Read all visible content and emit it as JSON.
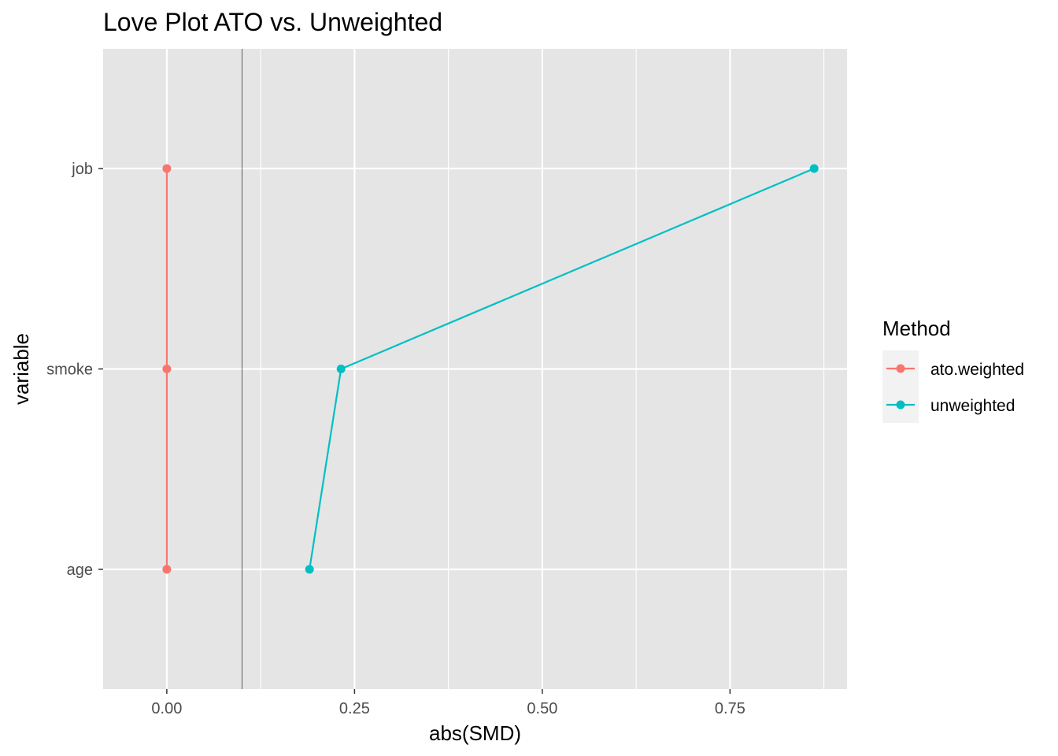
{
  "chart_data": {
    "type": "line",
    "title": "Love Plot ATO vs. Unweighted",
    "xlabel": "abs(SMD)",
    "ylabel": "variable",
    "categories": [
      "age",
      "smoke",
      "job"
    ],
    "xlim": [
      -0.0848,
      0.9058
    ],
    "x_ticks": [
      0,
      0.25,
      0.5,
      0.75
    ],
    "x_tick_labels": [
      "0.00",
      "0.25",
      "0.50",
      "0.75"
    ],
    "reference_line_x": 0.1,
    "grid": true,
    "legend": {
      "title": "Method",
      "position": "right"
    },
    "series": [
      {
        "name": "ato.weighted",
        "color": "#F8766D",
        "values": [
          0.0,
          0.0,
          0.0
        ]
      },
      {
        "name": "unweighted",
        "color": "#00BFC4",
        "values": [
          0.19,
          0.232,
          0.862
        ]
      }
    ]
  }
}
